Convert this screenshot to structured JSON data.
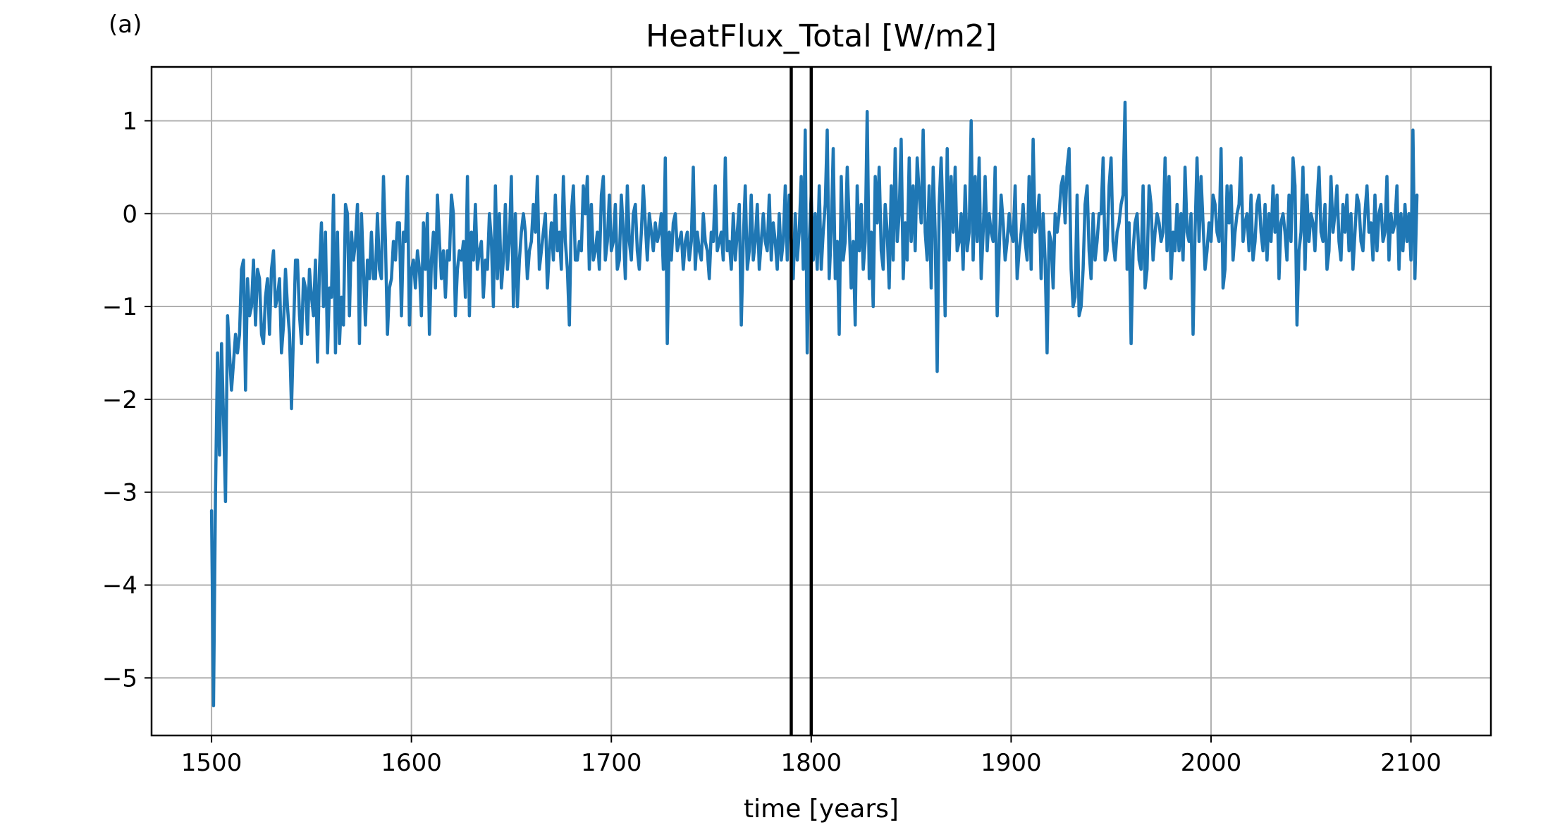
{
  "panel_label": "(a)",
  "chart_data": {
    "type": "line",
    "title": "HeatFlux_Total [W/m2]",
    "xlabel": "time [years]",
    "ylabel": "",
    "xlim": [
      1470,
      2140
    ],
    "ylim": [
      -5.62,
      1.58
    ],
    "x_ticks": [
      1500,
      1600,
      1700,
      1800,
      1900,
      2000,
      2100
    ],
    "x_tick_labels": [
      "1500",
      "1600",
      "1700",
      "1800",
      "1900",
      "2000",
      "2100"
    ],
    "y_ticks": [
      1,
      0,
      -1,
      -2,
      -3,
      -4,
      -5
    ],
    "y_tick_labels": [
      "1",
      "0",
      "−1",
      "−2",
      "−3",
      "−4",
      "−5"
    ],
    "grid": true,
    "vertical_lines": [
      1790,
      1800
    ],
    "vertical_line_color": "#000000",
    "series": [
      {
        "color": "#1f77b4",
        "x_start": 1500,
        "x_step": 1,
        "values": [
          -3.2,
          -5.3,
          -3.0,
          -1.5,
          -2.6,
          -1.4,
          -2.2,
          -3.1,
          -1.1,
          -1.5,
          -1.9,
          -1.6,
          -1.3,
          -1.5,
          -1.3,
          -0.6,
          -0.5,
          -1.9,
          -0.7,
          -1.1,
          -1.0,
          -0.5,
          -1.2,
          -0.6,
          -0.7,
          -1.3,
          -1.4,
          -0.9,
          -0.7,
          -1.3,
          -0.6,
          -0.4,
          -1.0,
          -0.9,
          -0.7,
          -1.5,
          -1.2,
          -0.6,
          -1.0,
          -1.3,
          -2.1,
          -1.3,
          -0.5,
          -0.5,
          -1.1,
          -1.4,
          -0.7,
          -0.8,
          -1.3,
          -0.6,
          -0.9,
          -1.1,
          -0.5,
          -1.6,
          -0.6,
          -0.1,
          -1.0,
          -0.2,
          -1.5,
          -0.8,
          -0.9,
          0.2,
          -1.5,
          -0.2,
          -1.4,
          -0.9,
          -1.2,
          0.1,
          0.0,
          -1.1,
          -0.2,
          -0.5,
          -0.3,
          0.1,
          -1.4,
          0.0,
          -0.6,
          -1.2,
          -0.5,
          -0.7,
          -0.2,
          -0.7,
          -0.7,
          0.0,
          -0.6,
          -0.7,
          0.4,
          -0.3,
          -1.3,
          -0.8,
          -0.7,
          -0.3,
          -0.5,
          -0.1,
          -0.1,
          -1.1,
          -0.2,
          -0.3,
          0.4,
          -1.2,
          -0.6,
          -0.5,
          -0.8,
          -0.4,
          -0.6,
          -1.1,
          -0.1,
          -0.6,
          0.0,
          -1.3,
          -0.5,
          -0.2,
          -0.8,
          0.2,
          -0.3,
          -0.7,
          -0.4,
          -0.9,
          -0.4,
          -0.5,
          0.2,
          0.0,
          -1.1,
          -0.6,
          -0.4,
          -0.5,
          -0.3,
          -0.9,
          0.4,
          -1.1,
          -0.2,
          -0.5,
          0.1,
          -0.6,
          -0.4,
          -0.3,
          -0.9,
          -0.5,
          -0.6,
          0.0,
          -0.3,
          -1.0,
          0.3,
          -0.7,
          0.0,
          -0.8,
          -0.5,
          0.1,
          -0.6,
          -0.3,
          0.4,
          -1.0,
          0.0,
          -1.0,
          -0.5,
          -0.2,
          0.0,
          -0.2,
          -0.7,
          -0.4,
          -0.3,
          0.1,
          -0.2,
          0.4,
          -0.6,
          -0.4,
          -0.2,
          0.0,
          -0.8,
          -0.4,
          -0.1,
          -0.5,
          0.2,
          -0.4,
          -0.2,
          -0.6,
          0.4,
          -0.3,
          -0.6,
          -1.2,
          0.0,
          0.3,
          -0.5,
          -0.5,
          -0.3,
          -0.4,
          0.3,
          0.0,
          0.4,
          -0.6,
          0.1,
          -0.5,
          -0.4,
          -0.2,
          -0.6,
          0.2,
          0.4,
          -0.5,
          -0.3,
          0.2,
          -0.4,
          -0.3,
          0.1,
          -0.6,
          -0.5,
          0.2,
          -0.2,
          -0.7,
          0.3,
          -0.3,
          -0.5,
          0.0,
          0.1,
          -0.4,
          -0.6,
          -0.2,
          0.3,
          -0.1,
          -0.5,
          0.0,
          -0.2,
          -0.4,
          -0.1,
          -0.3,
          -0.2,
          0.0,
          -0.6,
          0.6,
          -1.4,
          -0.2,
          -0.5,
          -0.1,
          0.0,
          -0.4,
          -0.3,
          -0.2,
          -0.6,
          -0.3,
          -0.2,
          -0.5,
          -0.3,
          0.5,
          -0.6,
          -0.2,
          -0.4,
          -0.5,
          0.0,
          -0.3,
          -0.4,
          -0.7,
          -0.2,
          -0.3,
          0.3,
          -0.4,
          -0.3,
          -0.2,
          -0.5,
          0.6,
          -0.4,
          -0.3,
          -0.6,
          0.0,
          -0.5,
          -0.2,
          0.1,
          -1.2,
          -0.3,
          0.3,
          -0.6,
          -0.4,
          0.2,
          -0.5,
          -0.3,
          0.1,
          -0.6,
          -0.3,
          0.0,
          -0.3,
          -0.4,
          0.2,
          -0.5,
          -0.1,
          -0.3,
          -0.6,
          0.0,
          -0.5,
          -0.3,
          0.3,
          -0.5,
          0.2,
          -0.3,
          -0.7,
          0.0,
          -0.5,
          -0.2,
          0.4,
          -0.6,
          0.9,
          -1.5,
          -0.3,
          0.2,
          -0.5,
          0.0,
          -0.6,
          0.3,
          -0.6,
          -0.2,
          0.1,
          0.9,
          -0.7,
          -0.2,
          0.7,
          -0.7,
          -0.3,
          -1.3,
          0.4,
          -0.5,
          -0.3,
          0.5,
          -0.1,
          -0.8,
          -0.3,
          -1.2,
          0.3,
          -0.4,
          0.1,
          -0.6,
          -0.3,
          1.1,
          -0.7,
          -0.2,
          -1.0,
          0.4,
          -0.1,
          0.5,
          -0.4,
          -0.6,
          0.1,
          -0.2,
          -0.8,
          0.3,
          -0.5,
          0.7,
          -0.3,
          0.0,
          0.8,
          -0.7,
          -0.1,
          -0.5,
          0.6,
          -0.3,
          0.3,
          -0.4,
          0.6,
          0.2,
          -0.1,
          0.9,
          -0.2,
          -0.5,
          0.3,
          -0.8,
          0.5,
          -0.2,
          -1.7,
          0.1,
          0.6,
          -0.1,
          -1.1,
          0.7,
          -0.5,
          0.4,
          -0.2,
          0.5,
          -0.4,
          -0.3,
          0.0,
          -0.6,
          0.3,
          -0.4,
          -0.2,
          1.0,
          -0.5,
          0.4,
          -0.3,
          0.6,
          -0.7,
          -0.2,
          0.4,
          -0.4,
          0.0,
          -0.2,
          -0.3,
          0.5,
          -1.1,
          -0.4,
          0.2,
          -0.1,
          -0.5,
          -0.3,
          0.0,
          -0.2,
          -0.3,
          0.3,
          -0.7,
          -0.4,
          -0.2,
          0.1,
          -0.3,
          -0.5,
          0.4,
          -0.6,
          0.8,
          -0.2,
          -0.1,
          0.2,
          -0.7,
          0.0,
          -0.5,
          -1.5,
          -0.2,
          -0.3,
          -0.8,
          0.0,
          -0.2,
          0.0,
          0.3,
          0.4,
          -0.1,
          0.5,
          0.7,
          -0.6,
          -1.0,
          -0.9,
          0.2,
          -1.1,
          -1.0,
          -0.6,
          0.1,
          0.3,
          -0.4,
          -0.7,
          0.0,
          -0.5,
          -0.3,
          0.0,
          0.0,
          0.6,
          -0.5,
          -0.4,
          0.3,
          0.6,
          -0.3,
          -0.5,
          -0.2,
          -0.1,
          0.1,
          0.2,
          1.2,
          -0.6,
          -0.1,
          -1.4,
          -0.4,
          -0.1,
          0.0,
          -0.5,
          -0.6,
          0.3,
          -0.8,
          -0.6,
          0.3,
          0.1,
          -0.5,
          -0.2,
          0.0,
          -0.1,
          -0.3,
          -0.2,
          0.6,
          -0.4,
          0.4,
          -0.7,
          -0.2,
          -0.4,
          0.1,
          -0.4,
          0.0,
          -0.5,
          0.5,
          -0.2,
          -0.3,
          0.0,
          -1.3,
          -0.2,
          0.6,
          -0.3,
          0.4,
          -0.1,
          -0.6,
          -0.4,
          -0.1,
          -0.3,
          0.2,
          0.1,
          -0.2,
          -0.3,
          0.7,
          -0.8,
          -0.6,
          0.3,
          -0.1,
          0.3,
          -0.5,
          -0.2,
          0.0,
          0.1,
          0.6,
          -0.3,
          -0.1,
          0.0,
          -0.4,
          0.2,
          -0.5,
          -0.3,
          0.1,
          0.2,
          -0.2,
          -0.4,
          0.1,
          -0.5,
          0.0,
          -0.3,
          0.3,
          -0.2,
          0.2,
          -0.7,
          -0.1,
          0.0,
          -0.2,
          -0.5,
          0.2,
          -0.3,
          0.6,
          0.3,
          -1.2,
          -0.4,
          -0.2,
          0.5,
          -0.6,
          0.2,
          -0.3,
          0.0,
          -0.1,
          -0.4,
          0.1,
          0.5,
          -0.2,
          -0.3,
          0.1,
          -0.6,
          -0.4,
          0.4,
          -0.2,
          0.0,
          0.3,
          -0.3,
          -0.5,
          0.1,
          -0.2,
          0.2,
          -0.4,
          0.0,
          -0.6,
          -0.2,
          0.2,
          0.1,
          -0.3,
          -0.4,
          0.0,
          0.3,
          -0.2,
          -0.1,
          -0.5,
          0.2,
          -0.4,
          0.0,
          0.1,
          -0.3,
          -0.2,
          0.4,
          -0.5,
          0.0,
          -0.2,
          -0.1,
          0.3,
          -0.6,
          0.0,
          -0.4,
          0.1,
          -0.3,
          0.0,
          -0.5,
          0.9,
          -0.7,
          0.2
        ]
      }
    ]
  }
}
